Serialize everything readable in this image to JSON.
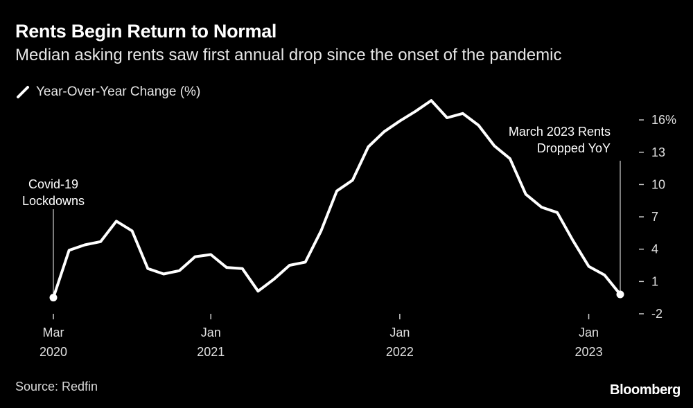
{
  "header": {
    "title": "Rents Begin Return to Normal",
    "subtitle": "Median asking rents saw first annual drop since the onset of the pandemic"
  },
  "footer": {
    "source": "Source: Redfin",
    "brand": "Bloomberg"
  },
  "colors": {
    "background": "#000000",
    "line": "#ffffff",
    "text": "#ffffff"
  },
  "chart_data": {
    "type": "line",
    "title": "Rents Begin Return to Normal",
    "subtitle": "Median asking rents saw first annual drop since the onset of the pandemic",
    "xlabel": "",
    "ylabel": "",
    "ylim": [
      -2,
      18
    ],
    "grid": false,
    "legend_position": "top-left",
    "series": [
      {
        "name": "Year-Over-Year Change (%)",
        "x": [
          "2020-03",
          "2020-04",
          "2020-05",
          "2020-06",
          "2020-07",
          "2020-08",
          "2020-09",
          "2020-10",
          "2020-11",
          "2020-12",
          "2021-01",
          "2021-02",
          "2021-03",
          "2021-04",
          "2021-05",
          "2021-06",
          "2021-07",
          "2021-08",
          "2021-09",
          "2021-10",
          "2021-11",
          "2021-12",
          "2022-01",
          "2022-02",
          "2022-03",
          "2022-04",
          "2022-05",
          "2022-06",
          "2022-07",
          "2022-08",
          "2022-09",
          "2022-10",
          "2022-11",
          "2022-12",
          "2023-01",
          "2023-02",
          "2023-03"
        ],
        "values": [
          -0.5,
          3.9,
          4.4,
          4.7,
          6.6,
          5.7,
          2.2,
          1.7,
          2.0,
          3.3,
          3.5,
          2.3,
          2.2,
          0.1,
          1.2,
          2.5,
          2.8,
          5.7,
          9.4,
          10.4,
          13.5,
          14.9,
          15.9,
          16.8,
          17.8,
          16.2,
          16.6,
          15.5,
          13.6,
          12.4,
          9.1,
          7.9,
          7.4,
          4.8,
          2.4,
          1.6,
          -0.2
        ]
      }
    ],
    "y_ticks": [
      {
        "value": 16,
        "label": "16%"
      },
      {
        "value": 13,
        "label": "13"
      },
      {
        "value": 10,
        "label": "10"
      },
      {
        "value": 7,
        "label": "7"
      },
      {
        "value": 4,
        "label": "4"
      },
      {
        "value": 1,
        "label": "1"
      },
      {
        "value": -2,
        "label": "-2"
      }
    ],
    "x_ticks": [
      {
        "x": "2020-03",
        "line1": "Mar",
        "line2": "2020"
      },
      {
        "x": "2021-01",
        "line1": "Jan",
        "line2": "2021"
      },
      {
        "x": "2022-01",
        "line1": "Jan",
        "line2": "2022"
      },
      {
        "x": "2023-01",
        "line1": "Jan",
        "line2": "2023"
      }
    ],
    "annotations": [
      {
        "x": "2020-03",
        "lines": [
          "Covid-19",
          "Lockdowns"
        ],
        "align": "center"
      },
      {
        "x": "2023-03",
        "lines": [
          "March 2023 Rents",
          "Dropped YoY"
        ],
        "align": "right"
      }
    ]
  }
}
